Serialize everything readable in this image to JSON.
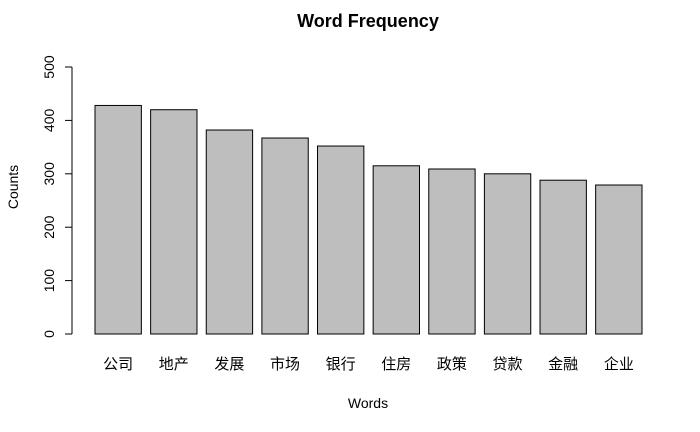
{
  "chart_data": {
    "type": "bar",
    "title": "Word Frequency",
    "xlabel": "Words",
    "ylabel": "Counts",
    "categories": [
      "公司",
      "地产",
      "发展",
      "市场",
      "银行",
      "住房",
      "政策",
      "贷款",
      "金融",
      "企业"
    ],
    "values": [
      428,
      420,
      382,
      367,
      352,
      315,
      309,
      300,
      288,
      279
    ],
    "ylim": [
      0,
      500
    ],
    "yticks": [
      0,
      100,
      200,
      300,
      400,
      500
    ],
    "grid": false,
    "legend": "none",
    "colors": {
      "bar_fill": "#bebebe",
      "bar_stroke": "#000000"
    }
  }
}
